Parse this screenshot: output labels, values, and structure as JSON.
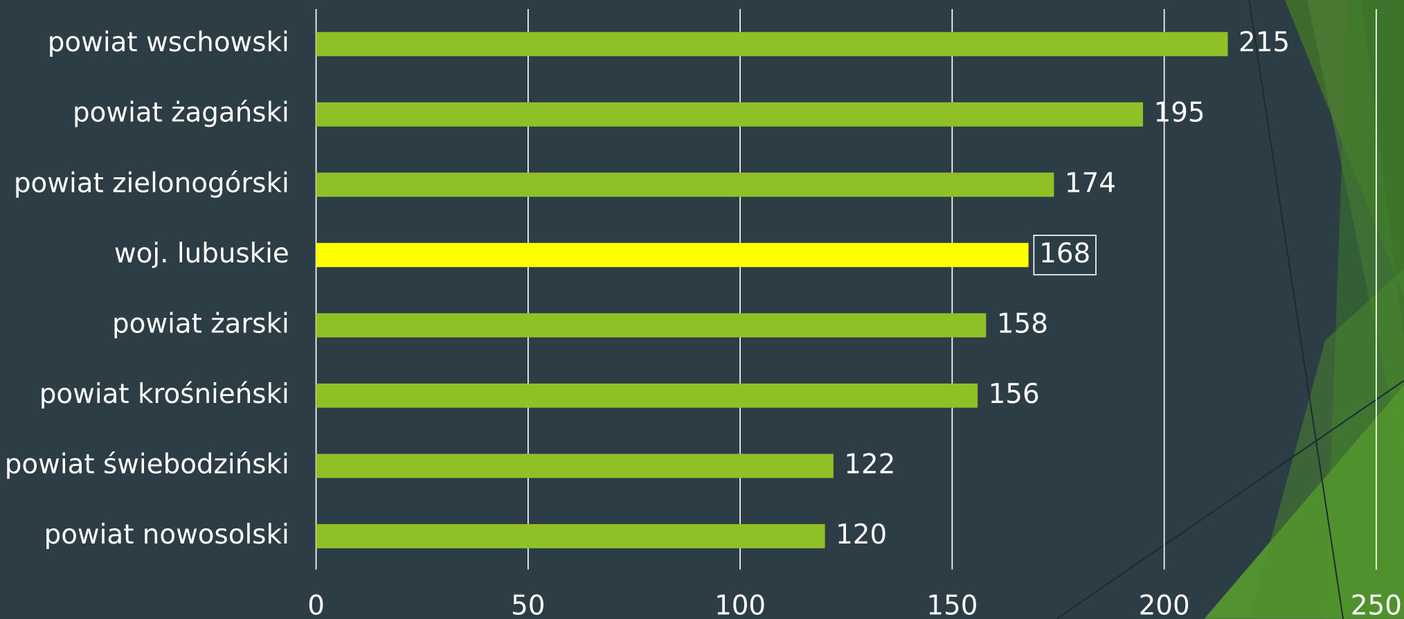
{
  "chart_data": {
    "type": "hbar",
    "categories": [
      "powiat wschowski",
      "powiat żagański",
      "powiat zielonogórski",
      "woj. lubuskie",
      "powiat żarski",
      "powiat krośnieński",
      "powiat świebodziński",
      "powiat nowosolski"
    ],
    "values": [
      215,
      195,
      174,
      168,
      158,
      156,
      122,
      120
    ],
    "colors": [
      "#8fc126",
      "#8fc126",
      "#8fc126",
      "#ffff00",
      "#8fc126",
      "#8fc126",
      "#8fc126",
      "#8fc126"
    ],
    "boxed_value_labels": [
      false,
      false,
      false,
      true,
      false,
      false,
      false,
      false
    ],
    "xlim": [
      0,
      250
    ],
    "xticks": [
      0,
      50,
      100,
      150,
      200,
      250
    ],
    "grid": true
  }
}
